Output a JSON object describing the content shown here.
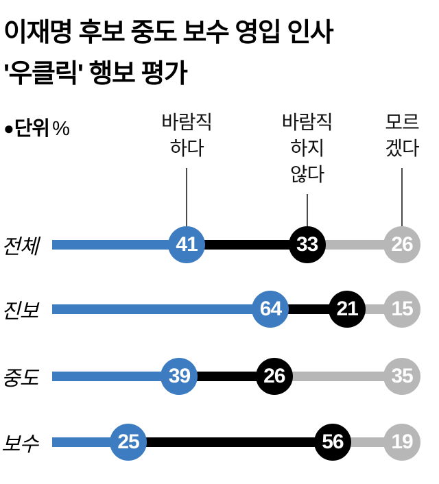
{
  "title": {
    "line1": "이재명 후보 중도 보수 영입 인사",
    "line2": "'우클릭' 행보 평가"
  },
  "unit": {
    "bullet": "●",
    "label": "단위",
    "symbol": "%"
  },
  "colors": {
    "desirable_blue": "#3d7cc1",
    "not_desirable_black": "#000000",
    "dont_know_gray": "#b7b7b7",
    "connector_line": "#4a4a4a",
    "value_text": "#ffffff",
    "background": "#ffffff"
  },
  "chart_data": {
    "type": "bar",
    "subtype": "horizontal-cumulative-dot",
    "unit": "%",
    "xlim": [
      0,
      100
    ],
    "grid": false,
    "legend_position": "top-as-column-headers",
    "column_headers": [
      "바람직\n하다",
      "바람직\n하지\n않다",
      "모르\n겠다"
    ],
    "categories": [
      "전체",
      "진보",
      "중도",
      "보수"
    ],
    "series": [
      {
        "name": "바람직하다",
        "color": "#3d7cc1",
        "values": [
          41,
          64,
          39,
          25
        ]
      },
      {
        "name": "바람직하지 않다",
        "color": "#000000",
        "values": [
          33,
          21,
          26,
          56
        ]
      },
      {
        "name": "모르겠다",
        "color": "#b7b7b7",
        "values": [
          26,
          15,
          35,
          19
        ]
      }
    ]
  }
}
